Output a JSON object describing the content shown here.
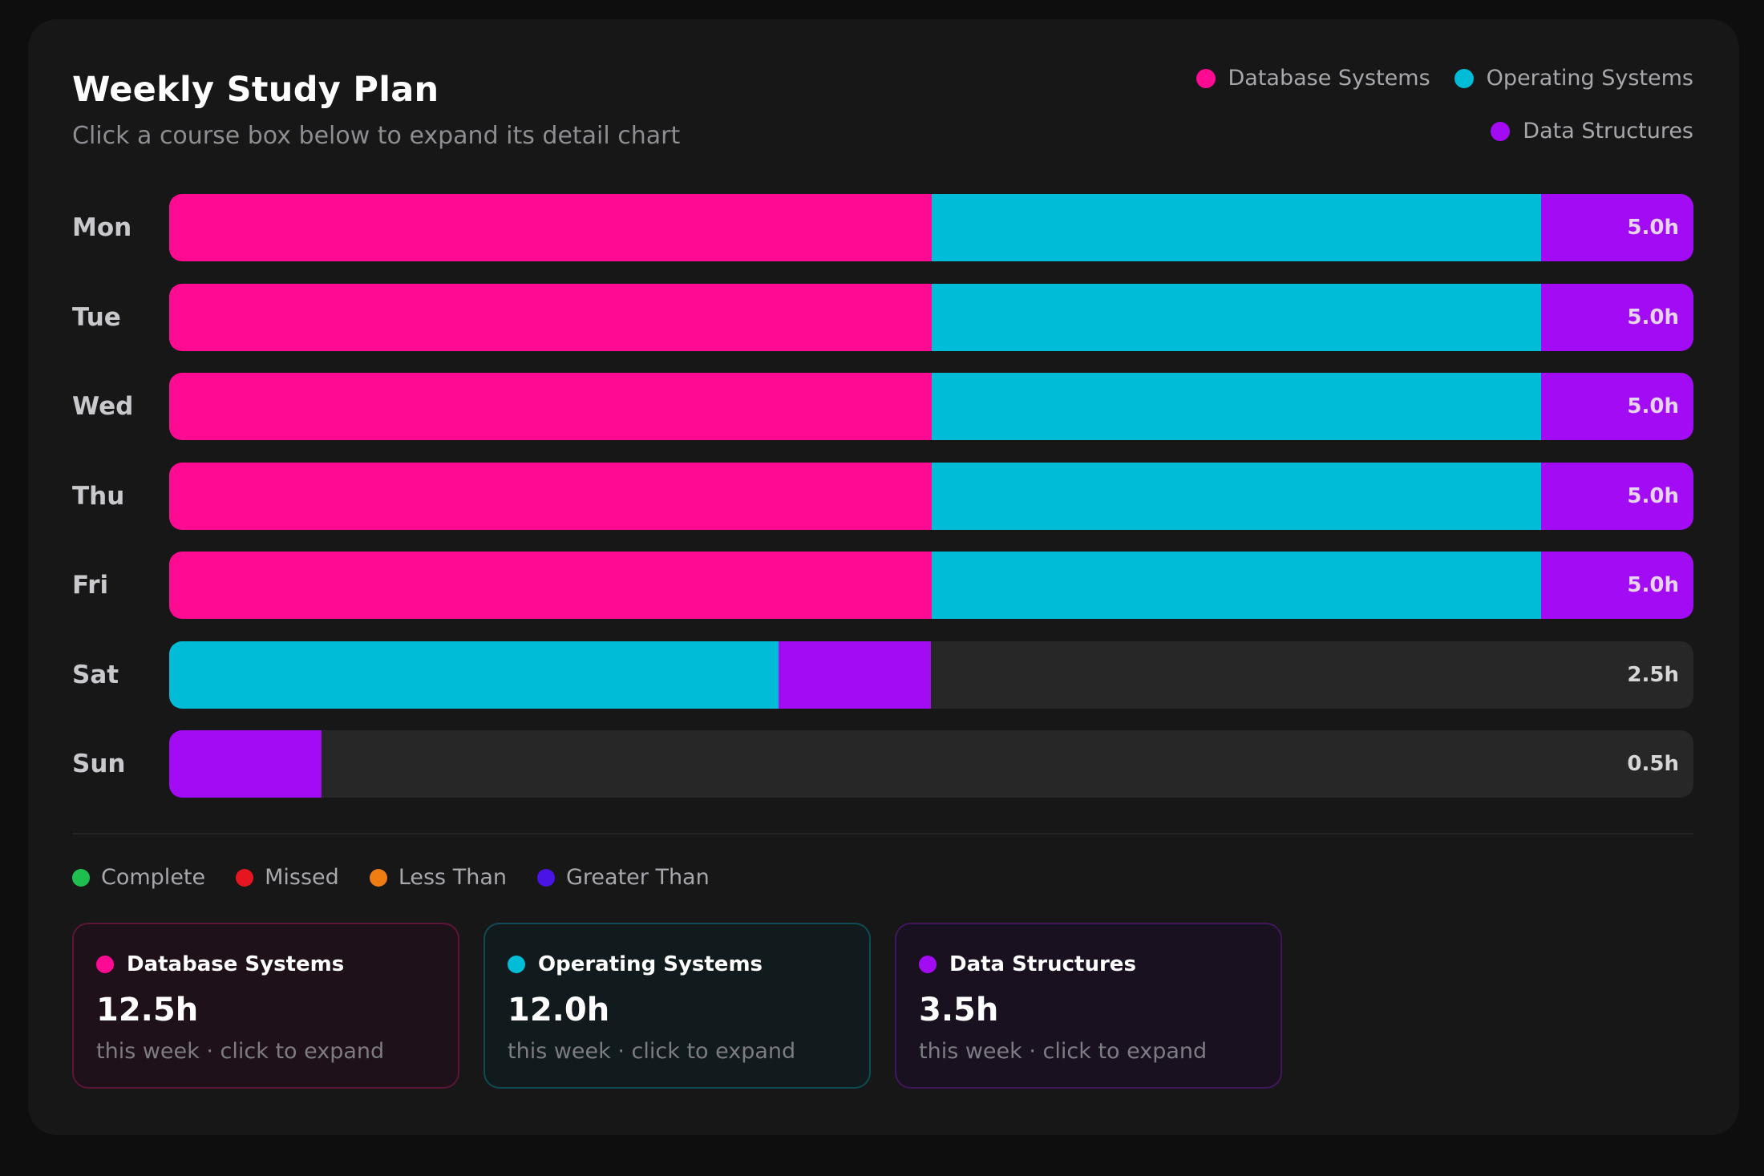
{
  "header": {
    "title": "Weekly Study Plan",
    "subtitle": "Click a course box below to expand its detail chart"
  },
  "colors": {
    "database_systems": "#ff0a93",
    "operating_systems": "#00bcd6",
    "data_structures": "#a30bf5",
    "track": "#272728",
    "complete": "#1fbf4f",
    "missed": "#e5161f",
    "less_than": "#f07d12",
    "greater_than": "#4a14e6"
  },
  "course_legend": [
    {
      "label": "Database Systems",
      "color": "#ff0a93"
    },
    {
      "label": "Operating Systems",
      "color": "#00bcd6"
    },
    {
      "label": "Data Structures",
      "color": "#a30bf5"
    }
  ],
  "status_legend": [
    {
      "label": "Complete",
      "color": "#1fbf4f"
    },
    {
      "label": "Missed",
      "color": "#e5161f"
    },
    {
      "label": "Less Than",
      "color": "#f07d12"
    },
    {
      "label": "Greater Than",
      "color": "#4a14e6"
    }
  ],
  "chart_data": {
    "type": "bar",
    "orientation": "horizontal",
    "stacked": true,
    "title": "Weekly Study Plan",
    "subtitle": "Click a course box below to expand its detail chart",
    "categories": [
      "Mon",
      "Tue",
      "Wed",
      "Thu",
      "Fri",
      "Sat",
      "Sun"
    ],
    "xlim": [
      0,
      5
    ],
    "grid": false,
    "legend": "top-right",
    "series": [
      {
        "name": "Database Systems",
        "color": "#ff0a93",
        "values": [
          2.5,
          2.5,
          2.5,
          2.5,
          2.5,
          0,
          0
        ]
      },
      {
        "name": "Operating Systems",
        "color": "#00bcd6",
        "values": [
          2.0,
          2.0,
          2.0,
          2.0,
          2.0,
          2.0,
          0
        ]
      },
      {
        "name": "Data Structures",
        "color": "#a30bf5",
        "values": [
          0.5,
          0.5,
          0.5,
          0.5,
          0.5,
          0.5,
          0.5
        ]
      }
    ],
    "totals": [
      "5.0h",
      "5.0h",
      "5.0h",
      "5.0h",
      "5.0h",
      "2.5h",
      "0.5h"
    ]
  },
  "course_boxes": [
    {
      "name": "Database Systems",
      "value": "12.5h",
      "sub": "this week · click to expand",
      "color": "#ff0a93",
      "bg": "#1f1119",
      "border": "#5c1536"
    },
    {
      "name": "Operating Systems",
      "value": "12.0h",
      "sub": "this week · click to expand",
      "color": "#00bcd6",
      "bg": "#111b1e",
      "border": "#0f4b54"
    },
    {
      "name": "Data Structures",
      "value": "3.5h",
      "sub": "this week · click to expand",
      "color": "#a30bf5",
      "bg": "#1a1120",
      "border": "#40175c"
    }
  ]
}
